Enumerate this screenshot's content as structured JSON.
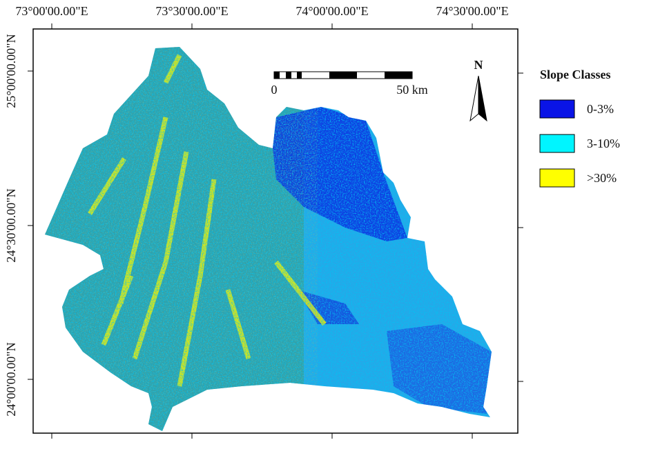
{
  "map": {
    "top_labels": [
      "73°00'00.00\"E",
      "73°30'00.00\"E",
      "74°00'00.00\"E",
      "74°30'00.00\"E"
    ],
    "left_labels": [
      "25°00'00.00\"N",
      "24°30'00.00\"N",
      "24°00'00.00\"N"
    ],
    "north": "N",
    "scale_bar": {
      "start": "0",
      "end": "50 km"
    },
    "legend": {
      "title": "Slope Classes",
      "items": [
        {
          "label": "0-3%",
          "color": "#0a14e6"
        },
        {
          "label": "3-10%",
          "color": "#00f5ff"
        },
        {
          "label": ">30%",
          "color": "#ffff00"
        }
      ]
    }
  }
}
